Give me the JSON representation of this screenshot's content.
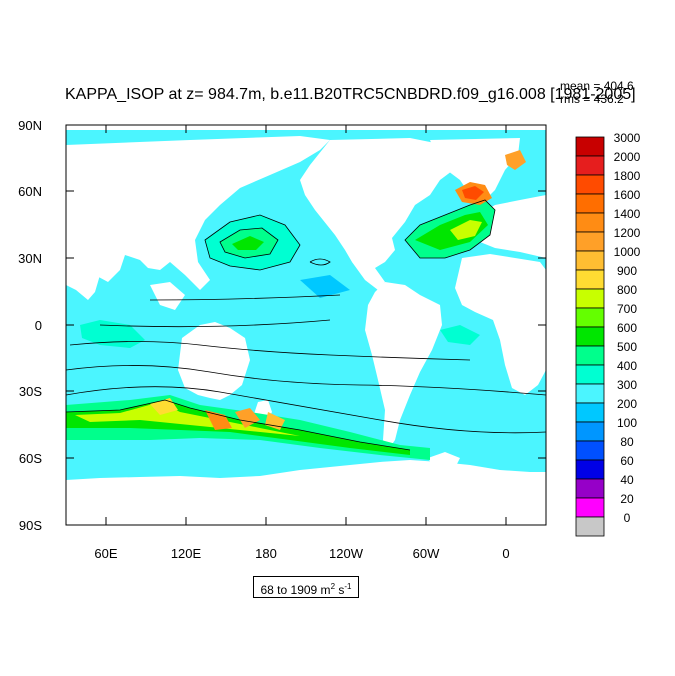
{
  "title": "KAPPA_ISOP at z= 984.7m, b.e11.B20TRC5CNBDRD.f09_g16.008 [1981-2005]",
  "stats": {
    "mean": "mean = 404.6",
    "rms": "rms = 436.2"
  },
  "range_label": {
    "prefix": "68 to 1909 m",
    "sup1": "2",
    "mid": " s",
    "sup2": "-1"
  },
  "axes": {
    "lat_labels": [
      "90N",
      "60N",
      "30N",
      "0",
      "30S",
      "60S",
      "90S"
    ],
    "lon_labels": [
      "60E",
      "120E",
      "180",
      "120W",
      "60W",
      "0"
    ]
  },
  "legend": {
    "levels": [
      "3000",
      "2000",
      "1800",
      "1600",
      "1400",
      "1200",
      "1000",
      "900",
      "800",
      "700",
      "600",
      "500",
      "400",
      "300",
      "200",
      "100",
      "80",
      "60",
      "40",
      "20",
      "0"
    ],
    "colors": [
      "#c80000",
      "#e61e1e",
      "#ff4b00",
      "#ff6e00",
      "#ff8c14",
      "#ffa028",
      "#ffbe32",
      "#ffdc32",
      "#c8ff00",
      "#64ff00",
      "#00e600",
      "#00ff8c",
      "#00ffd2",
      "#4bf5ff",
      "#00c8ff",
      "#0096ff",
      "#0050ff",
      "#0000e6",
      "#9600c8",
      "#ff00ff",
      "#c8c8c8"
    ]
  }
}
